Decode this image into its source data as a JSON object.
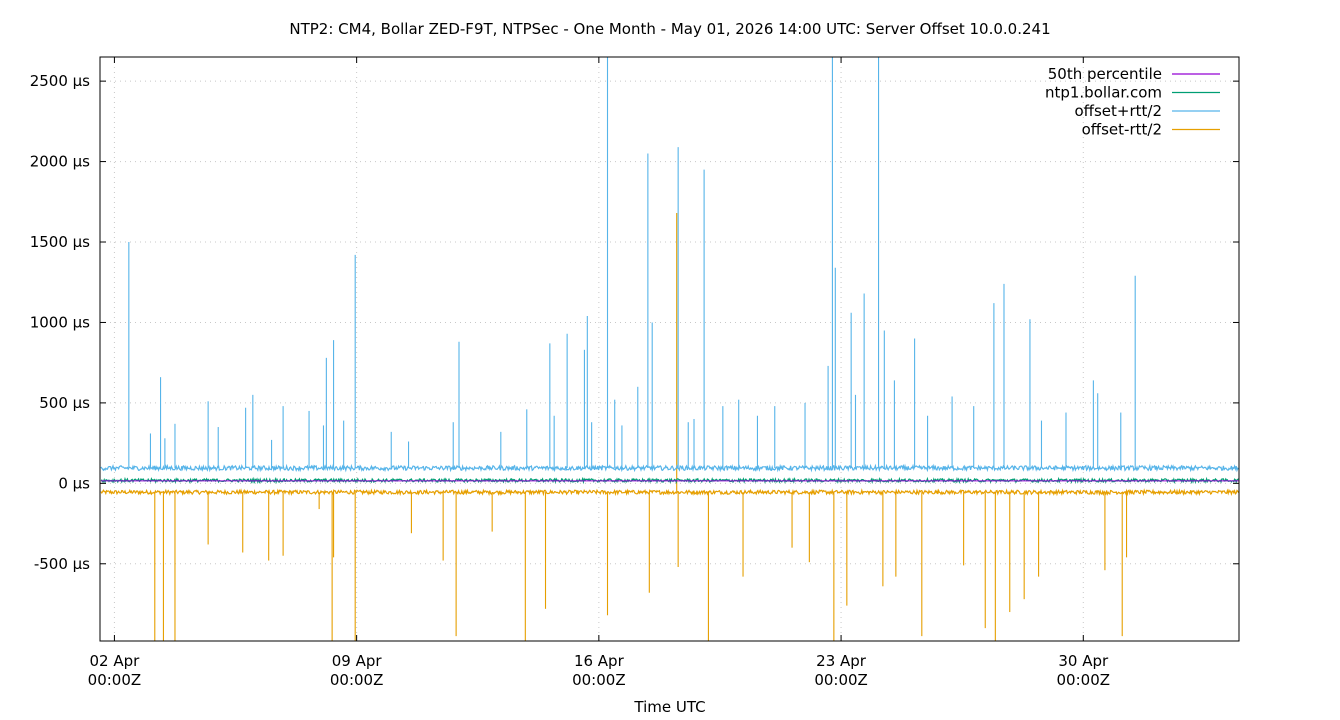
{
  "chart_data": {
    "type": "line",
    "title": "NTP2: CM4, Bollar ZED-F9T, NTPSec - One Month - May 01, 2026 14:00 UTC: Server Offset 10.0.0.241",
    "xlabel": "Time UTC",
    "ylabel": "",
    "y_unit": "µs",
    "ylim": [
      -980,
      2650
    ],
    "xlim": [
      "2026-04-01T14:00",
      "2026-05-04T12:00"
    ],
    "y_ticks": [
      {
        "value": 2500,
        "label": "2500 µs"
      },
      {
        "value": 2000,
        "label": "2000 µs"
      },
      {
        "value": 1500,
        "label": "1500 µs"
      },
      {
        "value": 1000,
        "label": "1000 µs"
      },
      {
        "value": 500,
        "label": "500 µs"
      },
      {
        "value": 0,
        "label": "0 µs"
      },
      {
        "value": -500,
        "label": "-500 µs"
      }
    ],
    "x_ticks": [
      {
        "value": "2026-04-02T00:00",
        "line1": "02 Apr",
        "line2": "00:00Z"
      },
      {
        "value": "2026-04-09T00:00",
        "line1": "09 Apr",
        "line2": "00:00Z"
      },
      {
        "value": "2026-04-16T00:00",
        "line1": "16 Apr",
        "line2": "00:00Z"
      },
      {
        "value": "2026-04-23T00:00",
        "line1": "23 Apr",
        "line2": "00:00Z"
      },
      {
        "value": "2026-04-30T00:00",
        "line1": "30 Apr",
        "line2": "00:00Z"
      }
    ],
    "grid": true,
    "legend_position": "top-right",
    "series": [
      {
        "name": "50th percentile",
        "color": "#9400d3",
        "baseline": 15
      },
      {
        "name": "ntp1.bollar.com",
        "color": "#009e73",
        "baseline": 18
      },
      {
        "name": "offset+rtt/2",
        "color": "#56b4e9",
        "baseline": 95,
        "spikes": [
          [
            "2026-04-02T10:00",
            1500
          ],
          [
            "2026-04-03T01:00",
            310
          ],
          [
            "2026-04-03T08:00",
            660
          ],
          [
            "2026-04-03T11:00",
            280
          ],
          [
            "2026-04-03T18:00",
            370
          ],
          [
            "2026-04-04T17:00",
            510
          ],
          [
            "2026-04-05T00:00",
            350
          ],
          [
            "2026-04-05T19:00",
            470
          ],
          [
            "2026-04-06T00:00",
            550
          ],
          [
            "2026-04-06T13:00",
            270
          ],
          [
            "2026-04-06T21:00",
            480
          ],
          [
            "2026-04-07T15:00",
            450
          ],
          [
            "2026-04-08T01:00",
            360
          ],
          [
            "2026-04-08T03:00",
            780
          ],
          [
            "2026-04-08T08:00",
            890
          ],
          [
            "2026-04-08T15:00",
            390
          ],
          [
            "2026-04-08T23:00",
            1420
          ],
          [
            "2026-04-10T00:00",
            320
          ],
          [
            "2026-04-10T12:00",
            260
          ],
          [
            "2026-04-11T19:00",
            380
          ],
          [
            "2026-04-11T23:00",
            880
          ],
          [
            "2026-04-13T04:00",
            320
          ],
          [
            "2026-04-13T22:00",
            460
          ],
          [
            "2026-04-14T14:00",
            870
          ],
          [
            "2026-04-14T17:00",
            420
          ],
          [
            "2026-04-15T02:00",
            930
          ],
          [
            "2026-04-15T16:00",
            1040
          ],
          [
            "2026-04-15T14:00",
            830
          ],
          [
            "2026-04-15T19:00",
            380
          ],
          [
            "2026-04-16T06:00",
            2660
          ],
          [
            "2026-04-16T11:00",
            520
          ],
          [
            "2026-04-16T16:00",
            360
          ],
          [
            "2026-04-17T03:00",
            600
          ],
          [
            "2026-04-17T10:00",
            2050
          ],
          [
            "2026-04-17T13:00",
            1000
          ],
          [
            "2026-04-18T07:00",
            2090
          ],
          [
            "2026-04-18T14:00",
            380
          ],
          [
            "2026-04-18T18:00",
            400
          ],
          [
            "2026-04-19T01:00",
            1950
          ],
          [
            "2026-04-19T14:00",
            480
          ],
          [
            "2026-04-20T01:00",
            520
          ],
          [
            "2026-04-20T14:00",
            420
          ],
          [
            "2026-04-21T02:00",
            480
          ],
          [
            "2026-04-21T23:00",
            500
          ],
          [
            "2026-04-22T15:00",
            730
          ],
          [
            "2026-04-22T18:00",
            2650
          ],
          [
            "2026-04-22T20:00",
            1340
          ],
          [
            "2026-04-23T07:00",
            1060
          ],
          [
            "2026-04-23T10:00",
            550
          ],
          [
            "2026-04-23T16:00",
            1180
          ],
          [
            "2026-04-24T02:00",
            2650
          ],
          [
            "2026-04-24T06:00",
            950
          ],
          [
            "2026-04-24T13:00",
            640
          ],
          [
            "2026-04-25T03:00",
            900
          ],
          [
            "2026-04-25T12:00",
            420
          ],
          [
            "2026-04-26T05:00",
            540
          ],
          [
            "2026-04-26T20:00",
            480
          ],
          [
            "2026-04-27T10:00",
            1120
          ],
          [
            "2026-04-27T17:00",
            1240
          ],
          [
            "2026-04-28T11:00",
            1020
          ],
          [
            "2026-04-28T19:00",
            390
          ],
          [
            "2026-04-29T12:00",
            440
          ],
          [
            "2026-04-30T07:00",
            640
          ],
          [
            "2026-04-30T10:00",
            560
          ],
          [
            "2026-05-01T02:00",
            440
          ],
          [
            "2026-05-01T12:00",
            1290
          ]
        ]
      },
      {
        "name": "offset-rtt/2",
        "color": "#e69f00",
        "baseline": -55,
        "spikes": [
          [
            "2026-04-03T04:00",
            -980
          ],
          [
            "2026-04-03T10:00",
            -980
          ],
          [
            "2026-04-03T18:00",
            -980
          ],
          [
            "2026-04-04T17:00",
            -380
          ],
          [
            "2026-04-05T17:00",
            -430
          ],
          [
            "2026-04-06T11:00",
            -480
          ],
          [
            "2026-04-06T21:00",
            -450
          ],
          [
            "2026-04-07T22:00",
            -160
          ],
          [
            "2026-04-08T07:00",
            -980
          ],
          [
            "2026-04-08T08:00",
            -460
          ],
          [
            "2026-04-08T23:00",
            -980
          ],
          [
            "2026-04-10T14:00",
            -310
          ],
          [
            "2026-04-11T12:00",
            -480
          ],
          [
            "2026-04-11T21:00",
            -950
          ],
          [
            "2026-04-12T22:00",
            -300
          ],
          [
            "2026-04-13T21:00",
            -980
          ],
          [
            "2026-04-14T11:00",
            -780
          ],
          [
            "2026-04-16T06:00",
            -820
          ],
          [
            "2026-04-17T11:00",
            -680
          ],
          [
            "2026-04-18T06:00",
            1680
          ],
          [
            "2026-04-18T07:00",
            -520
          ],
          [
            "2026-04-19T04:00",
            -980
          ],
          [
            "2026-04-20T04:00",
            -580
          ],
          [
            "2026-04-21T14:00",
            -400
          ],
          [
            "2026-04-22T02:00",
            -490
          ],
          [
            "2026-04-22T19:00",
            -980
          ],
          [
            "2026-04-23T04:00",
            -760
          ],
          [
            "2026-04-24T05:00",
            -640
          ],
          [
            "2026-04-24T14:00",
            -580
          ],
          [
            "2026-04-25T08:00",
            -950
          ],
          [
            "2026-04-26T13:00",
            -510
          ],
          [
            "2026-04-27T04:00",
            -900
          ],
          [
            "2026-04-27T11:00",
            -980
          ],
          [
            "2026-04-27T21:00",
            -800
          ],
          [
            "2026-04-28T07:00",
            -720
          ],
          [
            "2026-04-28T17:00",
            -580
          ],
          [
            "2026-04-30T15:00",
            -540
          ],
          [
            "2026-05-01T03:00",
            -950
          ],
          [
            "2026-05-01T06:00",
            -460
          ]
        ]
      }
    ]
  }
}
